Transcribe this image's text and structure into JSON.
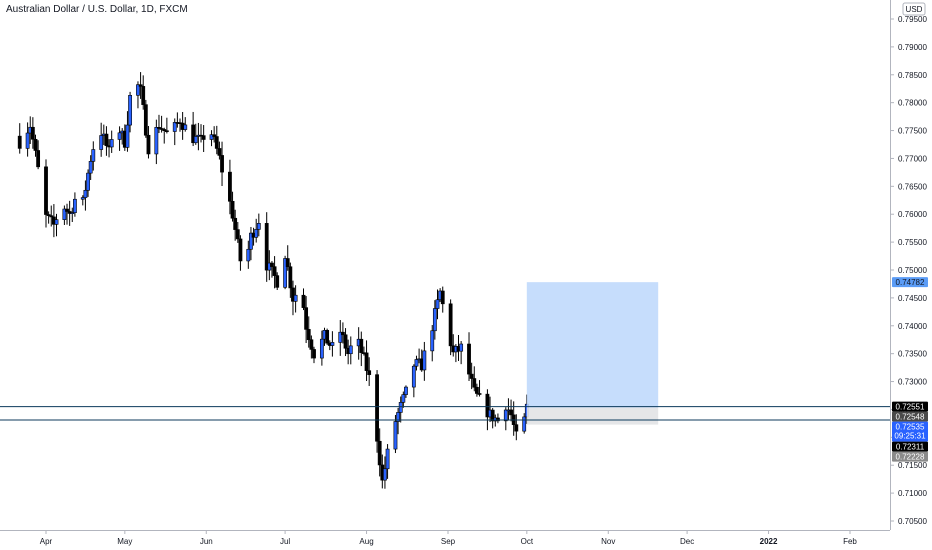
{
  "header": {
    "title": "Australian Dollar / U.S. Dollar, 1D, FXCM"
  },
  "price_axis": {
    "currency": "USD"
  },
  "chart_data": {
    "type": "candlestick",
    "title": "Australian Dollar / U.S. Dollar, 1D, FXCM",
    "ylim": [
      0.7025,
      0.7975
    ],
    "y_ticks": [
      "0.79500",
      "0.79000",
      "0.78500",
      "0.78000",
      "0.77500",
      "0.77000",
      "0.76500",
      "0.76000",
      "0.75500",
      "0.75000",
      "0.74500",
      "0.74000",
      "0.73500",
      "0.73000",
      "0.72500",
      "0.72000",
      "0.71500",
      "0.71000",
      "0.70500"
    ],
    "x_ticks": [
      "Apr",
      "May",
      "Jun",
      "Jul",
      "Aug",
      "Sep",
      "Oct",
      "Nov",
      "Dec",
      "2022",
      "Feb"
    ],
    "x_tick_days": [
      0,
      30,
      61,
      91,
      122,
      153,
      183,
      214,
      244,
      275,
      306
    ],
    "x_range_days": [
      -11,
      324
    ],
    "candles_start_day": -10,
    "candles_last_day": 183,
    "anchors": [
      [
        -10,
        0.773
      ],
      [
        -6,
        0.776
      ],
      [
        -3,
        0.768
      ],
      [
        -1,
        0.76
      ],
      [
        3,
        0.758
      ],
      [
        6,
        0.762
      ],
      [
        9,
        0.76
      ],
      [
        12,
        0.764
      ],
      [
        14,
        0.762
      ],
      [
        17,
        0.77
      ],
      [
        20,
        0.776
      ],
      [
        24,
        0.771
      ],
      [
        26,
        0.777
      ],
      [
        30,
        0.773
      ],
      [
        33,
        0.785
      ],
      [
        36,
        0.782
      ],
      [
        39,
        0.772
      ],
      [
        43,
        0.776
      ],
      [
        47,
        0.774
      ],
      [
        51,
        0.777
      ],
      [
        55,
        0.774
      ],
      [
        59,
        0.773
      ],
      [
        62,
        0.776
      ],
      [
        66,
        0.77
      ],
      [
        71,
        0.76
      ],
      [
        75,
        0.749
      ],
      [
        78,
        0.756
      ],
      [
        81,
        0.759
      ],
      [
        84,
        0.751
      ],
      [
        88,
        0.748
      ],
      [
        91,
        0.753
      ],
      [
        94,
        0.745
      ],
      [
        97,
        0.747
      ],
      [
        99,
        0.74
      ],
      [
        102,
        0.735
      ],
      [
        106,
        0.738
      ],
      [
        109,
        0.736
      ],
      [
        112,
        0.739
      ],
      [
        115,
        0.735
      ],
      [
        118,
        0.738
      ],
      [
        121,
        0.734
      ],
      [
        124,
        0.729
      ],
      [
        126,
        0.72
      ],
      [
        128,
        0.712
      ],
      [
        130,
        0.717
      ],
      [
        133,
        0.723
      ],
      [
        137,
        0.728
      ],
      [
        140,
        0.733
      ],
      [
        143,
        0.733
      ],
      [
        147,
        0.74
      ],
      [
        150,
        0.746
      ],
      [
        153,
        0.739
      ],
      [
        155,
        0.735
      ],
      [
        158,
        0.736
      ],
      [
        160,
        0.733
      ],
      [
        163,
        0.728
      ],
      [
        166,
        0.726
      ],
      [
        169,
        0.724
      ],
      [
        172,
        0.723
      ],
      [
        175,
        0.726
      ],
      [
        177,
        0.724
      ],
      [
        180,
        0.718
      ],
      [
        183,
        0.7254
      ]
    ],
    "horizontal_lines": [
      0.72551,
      0.72311
    ],
    "position_tool": {
      "start_day": 183,
      "end_day": 233,
      "entry": 0.72535,
      "target": 0.74782,
      "stop": 0.72228
    },
    "price_labels": [
      {
        "value": 0.74782,
        "text": "0.74782",
        "color": "#5b9cf6",
        "text_color": "#131722"
      },
      {
        "value": 0.72551,
        "text": "0.72551",
        "color": "#000000",
        "text_color": "#ffffff"
      },
      {
        "value": 0.72548,
        "text": "0.72548",
        "color": "#4a4a4a",
        "text_color": "#ffffff"
      },
      {
        "value": 0.72535,
        "text": "0.72535",
        "sub": "09:25:31",
        "color": "#2962ff",
        "text_color": "#ffffff"
      },
      {
        "value": 0.72311,
        "text": "0.72311",
        "color": "#000000",
        "text_color": "#ffffff"
      },
      {
        "value": 0.72228,
        "text": "0.72228",
        "color": "#8a8a8a",
        "text_color": "#ffffff"
      }
    ],
    "up_color": "#2962ff",
    "down_color": "#000000",
    "target_zone_color": "#bcd7fb",
    "stop_zone_color": "#e2e3e5",
    "axis_text_color": "#131722",
    "grid": false,
    "legend": "none"
  }
}
